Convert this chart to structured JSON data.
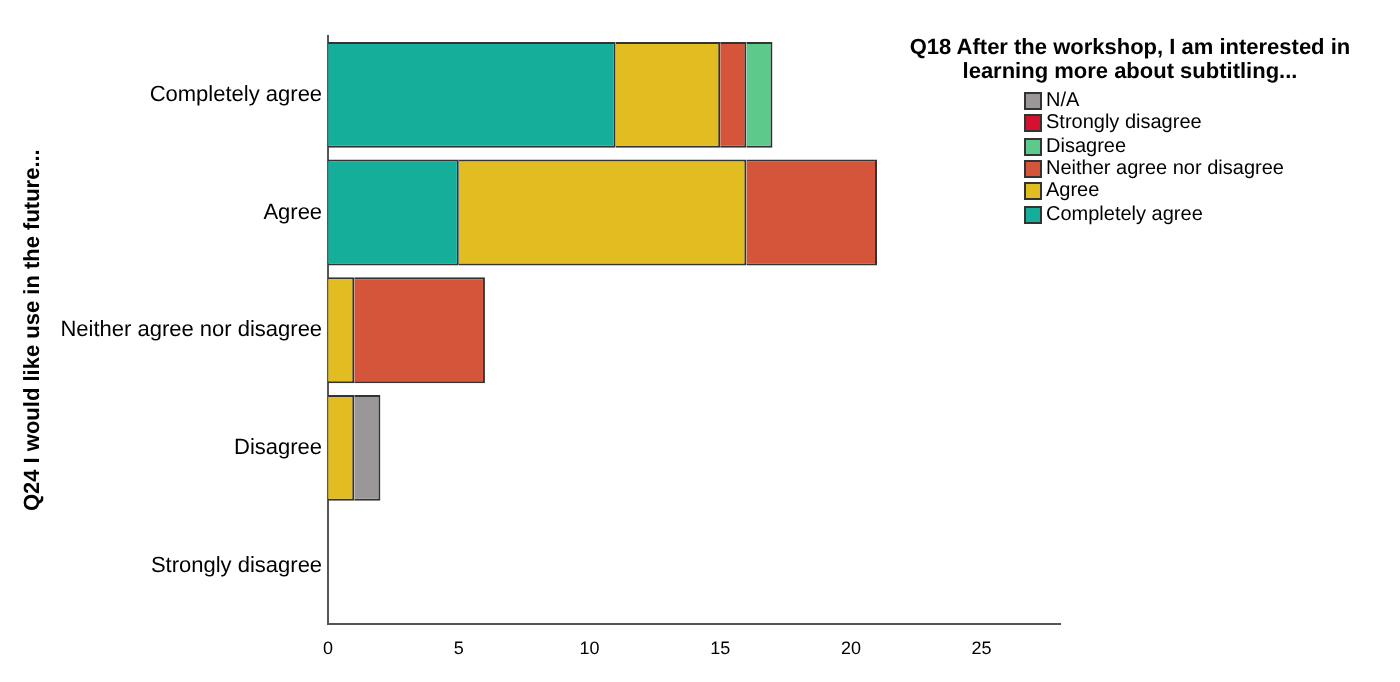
{
  "chart_data": {
    "type": "bar",
    "orientation": "horizontal",
    "stacked": true,
    "ylabel": "Q24 I would like use in the future...",
    "legend_title": "Q18 After the workshop, I am interested in learning more about subtitling...",
    "legend": "top right",
    "grid": false,
    "categories": [
      "Completely agree",
      "Agree",
      "Neither agree nor disagree",
      "Disagree",
      "Strongly disagree"
    ],
    "xlim": [
      0,
      28
    ],
    "xticks": [
      0,
      5,
      10,
      15,
      20,
      25
    ],
    "series": [
      {
        "name": "Completely agree",
        "color": "#14ae9b",
        "values": [
          11,
          5,
          null,
          null,
          null
        ]
      },
      {
        "name": "Agree",
        "color": "#e1bd22",
        "values": [
          4,
          11,
          1,
          1,
          null
        ]
      },
      {
        "name": "Neither agree nor disagree",
        "color": "#d4553a",
        "values": [
          1,
          5,
          5,
          null,
          null
        ]
      },
      {
        "name": "Disagree",
        "color": "#5cca8a",
        "values": [
          1,
          null,
          null,
          null,
          null
        ]
      },
      {
        "name": "Strongly disagree",
        "color": "#d4112e",
        "values": [
          null,
          null,
          null,
          null,
          null
        ]
      },
      {
        "name": "N/A",
        "color": "#9b9798",
        "values": [
          null,
          null,
          null,
          1,
          null
        ]
      }
    ]
  }
}
